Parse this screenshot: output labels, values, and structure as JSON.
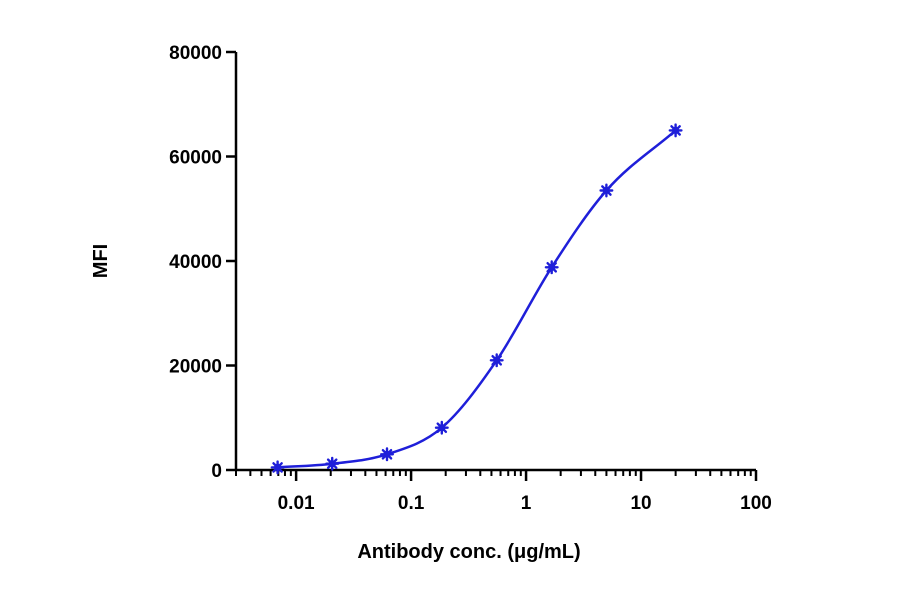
{
  "chart_data": {
    "type": "scatter",
    "title": "",
    "xlabel": "Antibody conc. (μg/mL)",
    "ylabel": "MFI",
    "x_scale": "log",
    "xlim": [
      0.003,
      100
    ],
    "ylim": [
      0,
      80000
    ],
    "x_ticks": [
      {
        "value": 0.01,
        "label": "0.01"
      },
      {
        "value": 0.1,
        "label": "0.1"
      },
      {
        "value": 1,
        "label": "1"
      },
      {
        "value": 10,
        "label": "10"
      },
      {
        "value": 100,
        "label": "100"
      }
    ],
    "y_ticks": [
      {
        "value": 0,
        "label": "0"
      },
      {
        "value": 20000,
        "label": "20000"
      },
      {
        "value": 40000,
        "label": "40000"
      },
      {
        "value": 60000,
        "label": "60000"
      },
      {
        "value": 80000,
        "label": "80000"
      }
    ],
    "series": [
      {
        "x": [
          0.0069,
          0.0206,
          0.0617,
          0.185,
          0.556,
          1.67,
          5.0,
          20.0
        ],
        "y": [
          500,
          1200,
          3000,
          8100,
          21000,
          38800,
          53500,
          65000
        ],
        "fit": "4PL sigmoidal curve"
      }
    ],
    "grid": false,
    "legend": "none",
    "colors": {
      "series": "#1f1fd9",
      "axis": "#000000"
    }
  }
}
